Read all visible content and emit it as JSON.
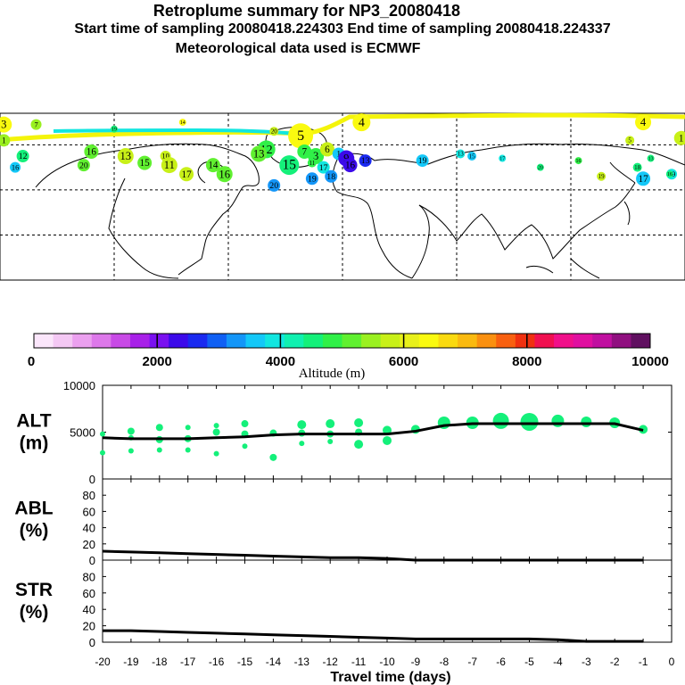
{
  "header": {
    "title": "Retroplume summary for NP3_20080418",
    "sampling": "Start time of sampling 20080418.224303     End time of sampling 20080418.224337",
    "met": "Meteorological data used is ECMWF"
  },
  "colorbar": {
    "label": "Altitude (m)",
    "ticks": [
      "0",
      "2000",
      "4000",
      "6000",
      "8000",
      "10000"
    ],
    "colors": [
      "#fbe6fb",
      "#f4c8f4",
      "#eba0ef",
      "#dd78ea",
      "#c84ae6",
      "#a820e8",
      "#7a10f0",
      "#3c0aea",
      "#1a2af0",
      "#1060f4",
      "#1496f8",
      "#14c8f8",
      "#12e6e0",
      "#10f0b0",
      "#14f07a",
      "#30f048",
      "#60f030",
      "#9af020",
      "#c8f018",
      "#e8f01a",
      "#fafa10",
      "#fada10",
      "#faba10",
      "#fa9010",
      "#f86010",
      "#f03010",
      "#f01050",
      "#f0108a",
      "#e010a0",
      "#c010a0",
      "#901080",
      "#601060"
    ]
  },
  "map": {
    "markers": [
      {
        "label": "3",
        "lon": -178,
        "lat": 79,
        "r": 9,
        "color": "#fafa10"
      },
      {
        "label": "7",
        "lon": -161,
        "lat": 79,
        "r": 6,
        "color": "#9af020"
      },
      {
        "label": "19",
        "lon": -120,
        "lat": 77,
        "r": 4,
        "color": "#14f07a"
      },
      {
        "label": "14",
        "lon": -84,
        "lat": 80,
        "r": 4,
        "color": "#fafa10"
      },
      {
        "label": "4",
        "lon": 10,
        "lat": 80,
        "r": 10,
        "color": "#fafa10"
      },
      {
        "label": "4",
        "lon": 158,
        "lat": 80,
        "r": 9,
        "color": "#fafa10"
      },
      {
        "label": "5",
        "lon": -22,
        "lat": 74,
        "r": 14,
        "color": "#fafa10"
      },
      {
        "label": "20",
        "lon": -36,
        "lat": 76,
        "r": 5,
        "color": "#c8f018"
      },
      {
        "label": "1",
        "lon": -178,
        "lat": 72,
        "r": 7,
        "color": "#9af020"
      },
      {
        "label": "16",
        "lon": -132,
        "lat": 67,
        "r": 8,
        "color": "#60f030"
      },
      {
        "label": "12",
        "lon": -168,
        "lat": 65,
        "r": 7,
        "color": "#14f07a"
      },
      {
        "label": "16",
        "lon": -172,
        "lat": 60,
        "r": 6,
        "color": "#14c8f8"
      },
      {
        "label": "20",
        "lon": -136,
        "lat": 61,
        "r": 7,
        "color": "#60f030"
      },
      {
        "label": "13",
        "lon": -114,
        "lat": 65,
        "r": 9,
        "color": "#c8f018"
      },
      {
        "label": "15",
        "lon": -104,
        "lat": 62,
        "r": 8,
        "color": "#60f030"
      },
      {
        "label": "10",
        "lon": -93,
        "lat": 65,
        "r": 6,
        "color": "#c8f018"
      },
      {
        "label": "11",
        "lon": -91,
        "lat": 61,
        "r": 9,
        "color": "#c8f018"
      },
      {
        "label": "17",
        "lon": -82,
        "lat": 57,
        "r": 8,
        "color": "#c8f018"
      },
      {
        "label": "14",
        "lon": -68,
        "lat": 61,
        "r": 8,
        "color": "#60f030"
      },
      {
        "label": "16",
        "lon": -62,
        "lat": 57,
        "r": 9,
        "color": "#60f030"
      },
      {
        "label": "12",
        "lon": -40,
        "lat": 68,
        "r": 10,
        "color": "#30f048"
      },
      {
        "label": "13",
        "lon": -44,
        "lat": 66,
        "r": 9,
        "color": "#60f030"
      },
      {
        "label": "15",
        "lon": -28,
        "lat": 61,
        "r": 11,
        "color": "#14f07a"
      },
      {
        "label": "7",
        "lon": -20,
        "lat": 67,
        "r": 8,
        "color": "#30f048"
      },
      {
        "label": "3",
        "lon": -14,
        "lat": 65,
        "r": 9,
        "color": "#30f048"
      },
      {
        "label": "6",
        "lon": -8,
        "lat": 68,
        "r": 8,
        "color": "#c8f018"
      },
      {
        "label": "11",
        "lon": -16,
        "lat": 62,
        "r": 5,
        "color": "#30f048"
      },
      {
        "label": "17",
        "lon": -10,
        "lat": 60,
        "r": 7,
        "color": "#12e6e0"
      },
      {
        "label": "1",
        "lon": -2,
        "lat": 66,
        "r": 7,
        "color": "#14c8f8"
      },
      {
        "label": "19",
        "lon": -16,
        "lat": 55,
        "r": 7,
        "color": "#1496f8"
      },
      {
        "label": "18",
        "lon": -6,
        "lat": 56,
        "r": 7,
        "color": "#1496f8"
      },
      {
        "label": "20",
        "lon": -36,
        "lat": 52,
        "r": 7,
        "color": "#1496f8"
      },
      {
        "label": "9",
        "lon": 2,
        "lat": 64,
        "r": 9,
        "color": "#3c0aea"
      },
      {
        "label": "16",
        "lon": 4,
        "lat": 61,
        "r": 8,
        "color": "#3c0aea"
      },
      {
        "label": "13",
        "lon": 12,
        "lat": 63,
        "r": 7,
        "color": "#1a2af0"
      },
      {
        "label": "19",
        "lon": 42,
        "lat": 63,
        "r": 7,
        "color": "#14c8f8"
      },
      {
        "label": "13",
        "lon": 62,
        "lat": 66,
        "r": 5,
        "color": "#12e6e0"
      },
      {
        "label": "15",
        "lon": 68,
        "lat": 65,
        "r": 5,
        "color": "#14c8f8"
      },
      {
        "label": "17",
        "lon": 84,
        "lat": 64,
        "r": 4,
        "color": "#12e6e0"
      },
      {
        "label": "20",
        "lon": 104,
        "lat": 60,
        "r": 4,
        "color": "#14f07a"
      },
      {
        "label": "16",
        "lon": 124,
        "lat": 63,
        "r": 4,
        "color": "#30f048"
      },
      {
        "label": "5",
        "lon": 151,
        "lat": 72,
        "r": 5,
        "color": "#c8f018"
      },
      {
        "label": "19",
        "lon": 136,
        "lat": 56,
        "r": 5,
        "color": "#c8f018"
      },
      {
        "label": "18",
        "lon": 155,
        "lat": 60,
        "r": 5,
        "color": "#14f07a"
      },
      {
        "label": "17",
        "lon": 158,
        "lat": 55,
        "r": 8,
        "color": "#14c8f8"
      },
      {
        "label": "19",
        "lon": 173,
        "lat": 57,
        "r": 6,
        "color": "#12e6e0"
      },
      {
        "label": "13",
        "lon": 162,
        "lat": 64,
        "r": 4,
        "color": "#14f07a"
      },
      {
        "label": "16",
        "lon": 172,
        "lat": 57,
        "r": 4,
        "color": "#14f07a"
      },
      {
        "label": "1",
        "lon": 178,
        "lat": 73,
        "r": 8,
        "color": "#c8f018"
      }
    ]
  },
  "chart_data": {
    "type": "line",
    "x": [
      -20,
      -19,
      -18,
      -17,
      -16,
      -15,
      -14,
      -13,
      -12,
      -11,
      -10,
      -9,
      -8,
      -7,
      -6,
      -5,
      -4,
      -3,
      -2,
      -1
    ],
    "xlabel": "Travel time (days)",
    "xticks": [
      "-20",
      "-19",
      "-18",
      "-17",
      "-16",
      "-15",
      "-14",
      "-13",
      "-12",
      "-11",
      "-10",
      "-9",
      "-8",
      "-7",
      "-6",
      "-5",
      "-4",
      "-3",
      "-2",
      "-1",
      "0"
    ],
    "xlim": [
      -20,
      0
    ],
    "panels": [
      {
        "name": "ALT",
        "label_line1": "ALT",
        "label_line2": "(m)",
        "ylim": [
          0,
          10000
        ],
        "yticks": [
          "10000",
          "5000",
          "0"
        ],
        "mean": [
          4400,
          4300,
          4300,
          4300,
          4400,
          4500,
          4700,
          4800,
          4800,
          4800,
          4800,
          5100,
          5700,
          5900,
          5900,
          5900,
          5900,
          5900,
          5900,
          5200
        ],
        "scatter": [
          {
            "x": -20,
            "y": 4800,
            "r": 3
          },
          {
            "x": -20,
            "y": 2800,
            "r": 3
          },
          {
            "x": -19,
            "y": 5100,
            "r": 4
          },
          {
            "x": -19,
            "y": 4400,
            "r": 3
          },
          {
            "x": -19,
            "y": 3000,
            "r": 3
          },
          {
            "x": -18,
            "y": 5500,
            "r": 4
          },
          {
            "x": -18,
            "y": 4200,
            "r": 4
          },
          {
            "x": -18,
            "y": 3100,
            "r": 3
          },
          {
            "x": -17,
            "y": 5500,
            "r": 3
          },
          {
            "x": -17,
            "y": 4300,
            "r": 4
          },
          {
            "x": -17,
            "y": 3100,
            "r": 3
          },
          {
            "x": -16,
            "y": 5700,
            "r": 3
          },
          {
            "x": -16,
            "y": 5000,
            "r": 4
          },
          {
            "x": -16,
            "y": 2700,
            "r": 3
          },
          {
            "x": -15,
            "y": 5900,
            "r": 4
          },
          {
            "x": -15,
            "y": 4800,
            "r": 4
          },
          {
            "x": -15,
            "y": 3500,
            "r": 3
          },
          {
            "x": -14,
            "y": 4900,
            "r": 4
          },
          {
            "x": -14,
            "y": 2300,
            "r": 4
          },
          {
            "x": -13,
            "y": 5800,
            "r": 5
          },
          {
            "x": -13,
            "y": 4900,
            "r": 4
          },
          {
            "x": -13,
            "y": 3800,
            "r": 3
          },
          {
            "x": -12,
            "y": 5900,
            "r": 5
          },
          {
            "x": -12,
            "y": 4800,
            "r": 4
          },
          {
            "x": -12,
            "y": 4000,
            "r": 3
          },
          {
            "x": -11,
            "y": 6000,
            "r": 5
          },
          {
            "x": -11,
            "y": 5000,
            "r": 4
          },
          {
            "x": -11,
            "y": 3700,
            "r": 5
          },
          {
            "x": -10,
            "y": 5200,
            "r": 5
          },
          {
            "x": -10,
            "y": 4100,
            "r": 5
          },
          {
            "x": -9,
            "y": 5300,
            "r": 5
          },
          {
            "x": -8,
            "y": 6000,
            "r": 7
          },
          {
            "x": -7,
            "y": 6000,
            "r": 7
          },
          {
            "x": -6,
            "y": 6200,
            "r": 9
          },
          {
            "x": -5,
            "y": 6100,
            "r": 10
          },
          {
            "x": -4,
            "y": 6200,
            "r": 7
          },
          {
            "x": -3,
            "y": 6100,
            "r": 6
          },
          {
            "x": -2,
            "y": 6000,
            "r": 6
          },
          {
            "x": -1,
            "y": 5300,
            "r": 5
          }
        ]
      },
      {
        "name": "ABL",
        "label_line1": "ABL",
        "label_line2": "(%)",
        "ylim": [
          0,
          100
        ],
        "yticks": [
          "80",
          "60",
          "40",
          "20",
          "0"
        ],
        "mean": [
          11,
          10,
          9,
          8,
          7,
          6,
          5,
          4,
          3,
          3,
          2,
          0,
          0,
          0,
          0,
          0,
          0,
          0,
          0,
          0
        ]
      },
      {
        "name": "STR",
        "label_line1": "STR",
        "label_line2": "(%)",
        "ylim": [
          0,
          100
        ],
        "yticks": [
          "80",
          "60",
          "40",
          "20",
          "0"
        ],
        "mean": [
          14,
          14,
          13,
          12,
          11,
          10,
          9,
          8,
          7,
          6,
          5,
          4,
          4,
          4,
          4,
          4,
          3,
          1,
          1,
          1
        ]
      }
    ]
  }
}
